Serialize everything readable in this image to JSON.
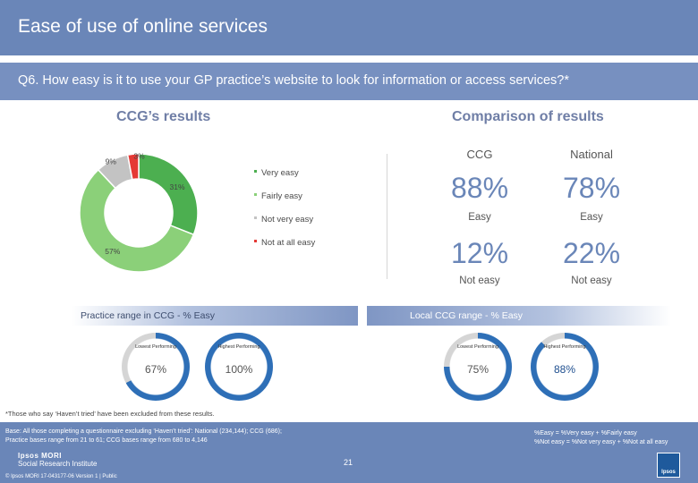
{
  "header": {
    "title": "Ease of use of online services"
  },
  "question": {
    "text": "Q6. How easy is it to use your GP practice’s website to look for information or access services?*"
  },
  "left_title": "CCG’s results",
  "right_title": "Comparison of results",
  "chart_data": {
    "type": "pie",
    "categories": [
      "Very easy",
      "Fairly easy",
      "Not very easy",
      "Not at all easy"
    ],
    "values": [
      31,
      57,
      9,
      3
    ],
    "labels": [
      "31%",
      "57%",
      "9%",
      "3%"
    ],
    "colors": [
      "#4caf50",
      "#8bd079",
      "#c3c3c3",
      "#e53935"
    ],
    "legend": "right"
  },
  "comparison": {
    "ccg_label": "CCG",
    "national_label": "National",
    "ccg_easy": "88%",
    "national_easy": "78%",
    "easy_label": "Easy",
    "ccg_not_easy": "12%",
    "national_not_easy": "22%",
    "not_easy_label": "Not easy"
  },
  "practice_range": {
    "title": "Practice range in CCG - % Easy",
    "lowest_label": "Lowest Performing",
    "lowest_value": "67%",
    "lowest_level": 67,
    "highest_label": "Highest Performing",
    "highest_value": "100%",
    "highest_level": 100
  },
  "local_range": {
    "title": "Local CCG range - % Easy",
    "lowest_label": "Lowest Performing",
    "lowest_value": "75%",
    "lowest_level": 75,
    "highest_label": "Highest Performing",
    "highest_value": "88%",
    "highest_level": 88
  },
  "footnote": "*Those who say ‘Haven’t tried’ have been excluded from these results.",
  "footer": {
    "base_line1": "Base: All those completing a questionnaire excluding ‘Haven’t tried’: National (234,144); CCG (686);",
    "base_line2": "Practice bases range from 21 to 61; CCG bases range from 680 to 4,146",
    "formula_line1": "%Easy = %Very easy + %Fairly easy",
    "formula_line2": "%Not easy = %Not very easy + %Not at all easy",
    "page_number": "21",
    "logo_line1": "Ipsos MORI",
    "logo_line2": "Social Research Institute",
    "copyright": "© Ipsos MORI      17-043177-06 Version 1 | Public",
    "corner_logo_text": "Ipsos"
  },
  "colors": {
    "gauge_fill": "#2e6fb7",
    "gauge_track": "#d5d5d5"
  }
}
